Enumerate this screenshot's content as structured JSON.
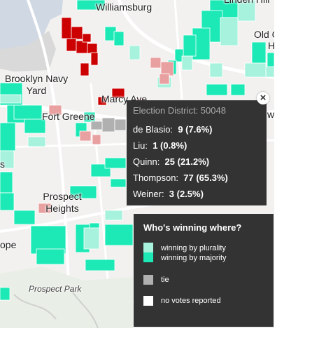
{
  "map": {
    "labels": {
      "williamsburg": "Williamsburg",
      "linden_hill": "Linden Hill",
      "old": "Old C",
      "h": "H",
      "navy_yard_line1": "Brooklyn Navy",
      "navy_yard_line2": "Yard",
      "marcy": "Marcy Ave",
      "fort_greene": "Fort Greene",
      "s_fragment": "s",
      "w_fragment": "w",
      "prospect_heights_line1": "Prospect",
      "prospect_heights_line2": "Heights",
      "ope": "ope",
      "prospect_park": "Prospect Park"
    }
  },
  "tooltip": {
    "district": "Election District: 50048",
    "close_glyph": "×",
    "rows": [
      {
        "name": "de Blasio:",
        "value": "9  (7.6%)"
      },
      {
        "name": "Liu:",
        "value": "1  (0.8%)"
      },
      {
        "name": "Quinn:",
        "value": "25  (21.2%)"
      },
      {
        "name": "Thompson:",
        "value": "77  (65.3%)"
      },
      {
        "name": "Weiner:",
        "value": "3  (2.5%)"
      }
    ]
  },
  "legend": {
    "title": "Who's winning where?",
    "items": [
      {
        "label": "winning by plurality",
        "color": "#a6f2dd"
      },
      {
        "label": "winning by majority",
        "color": "#1de9b6"
      },
      {
        "label": "tie",
        "color": "#b0b0b0"
      },
      {
        "label": "no votes reported",
        "color": "#ffffff"
      }
    ]
  },
  "colors": {
    "thompson_majority": "#1de9b6",
    "thompson_plurality": "#a6f2dd",
    "quinn_majority": "#cc0000",
    "quinn_plurality": "#e8a0a0",
    "tie": "#b0b0b0",
    "panel": "#333333"
  }
}
